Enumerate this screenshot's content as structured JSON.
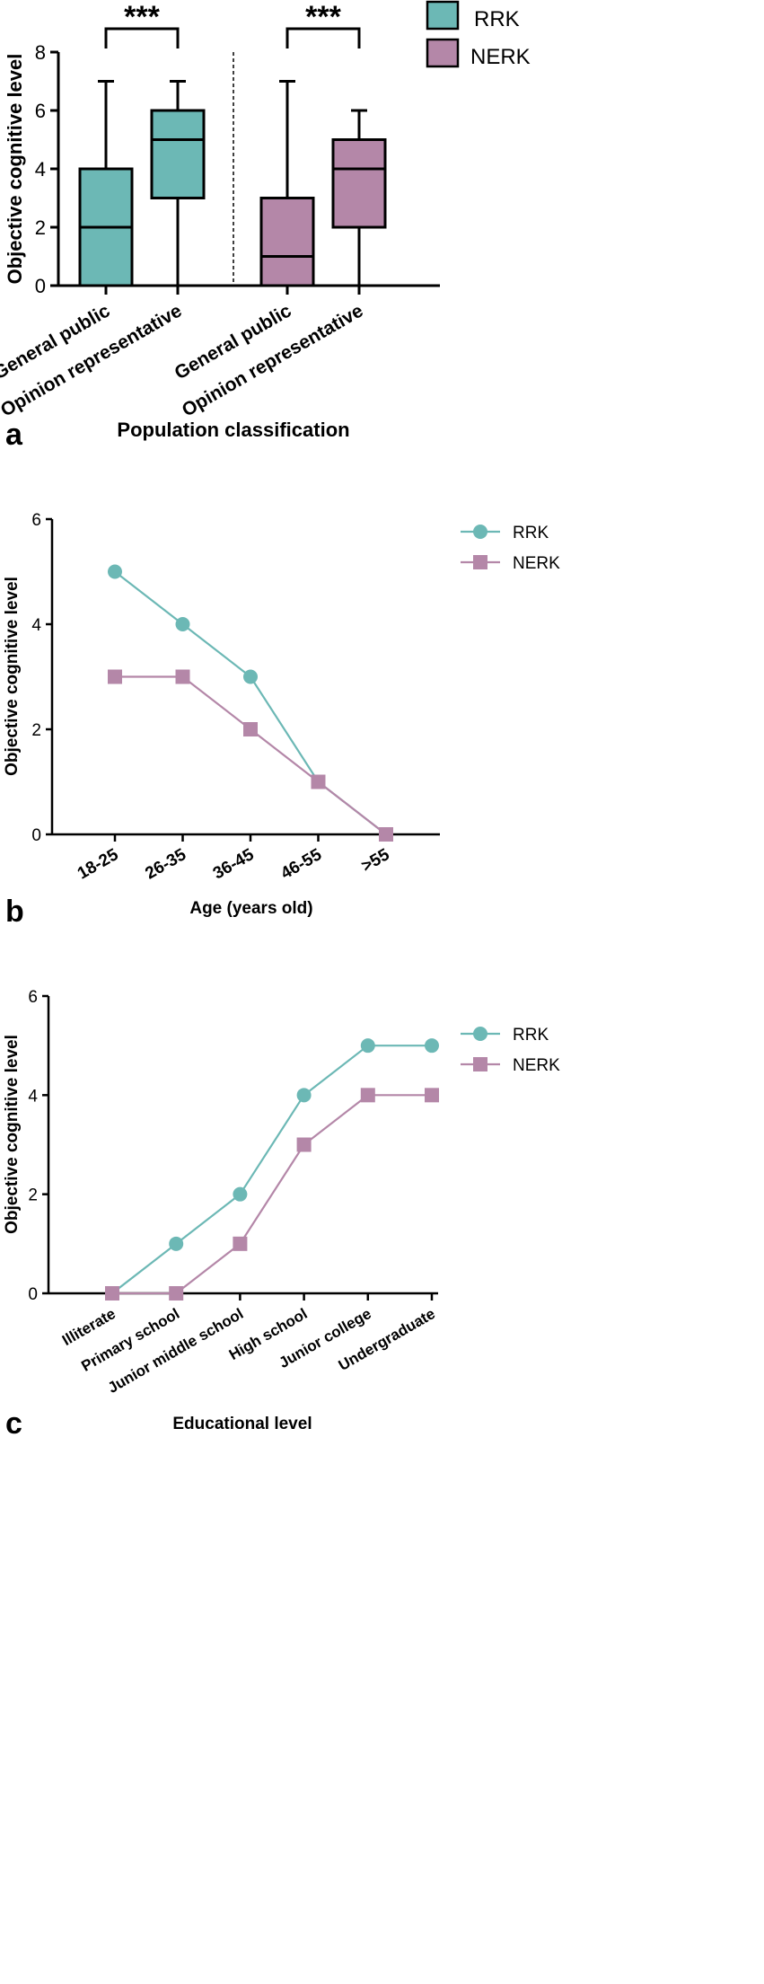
{
  "colors": {
    "rrk": "#6cb8b5",
    "nerk": "#b487a8",
    "axis": "#000000"
  },
  "chart_data": [
    {
      "type": "box",
      "panel_label": "a",
      "xlabel": "Population classification",
      "ylabel": "Objective cognitive level",
      "ylim": [
        0,
        8
      ],
      "yticks": [
        "0",
        "2",
        "4",
        "6",
        "8"
      ],
      "legend": [
        {
          "name": "RRK",
          "icon": "square-swatch"
        },
        {
          "name": "NERK",
          "icon": "square-swatch"
        }
      ],
      "significance": [
        "***",
        "***"
      ],
      "boxes": [
        {
          "group": "RRK",
          "category": "General public",
          "min": 0,
          "q1": 0,
          "median": 2,
          "q3": 4,
          "max": 7
        },
        {
          "group": "RRK",
          "category": "Opinion representative",
          "min": 0,
          "q1": 3,
          "median": 5,
          "q3": 6,
          "max": 7
        },
        {
          "group": "NERK",
          "category": "General public",
          "min": 0,
          "q1": 0,
          "median": 1,
          "q3": 3,
          "max": 7
        },
        {
          "group": "NERK",
          "category": "Opinion representative",
          "min": 0,
          "q1": 2,
          "median": 4,
          "q3": 5,
          "max": 6
        }
      ]
    },
    {
      "type": "line",
      "panel_label": "b",
      "xlabel": "Age (years old)",
      "ylabel": "Objective cognitive level",
      "ylim": [
        0,
        6
      ],
      "yticks": [
        "0",
        "2",
        "4",
        "6"
      ],
      "categories": [
        "18-25",
        "26-35",
        "36-45",
        "46-55",
        ">55"
      ],
      "series": [
        {
          "name": "RRK",
          "marker": "circle",
          "values": [
            5,
            4,
            3,
            1,
            0
          ]
        },
        {
          "name": "NERK",
          "marker": "square",
          "values": [
            3,
            3,
            2,
            1,
            0
          ]
        }
      ]
    },
    {
      "type": "line",
      "panel_label": "c",
      "xlabel": "Educational level",
      "ylabel": "Objective cognitive level",
      "ylim": [
        0,
        6
      ],
      "yticks": [
        "0",
        "2",
        "4",
        "6"
      ],
      "categories": [
        "Illiterate",
        "Primary school",
        "Junior middle school",
        "High school",
        "Junior college",
        "Undergraduate"
      ],
      "series": [
        {
          "name": "RRK",
          "marker": "circle",
          "values": [
            0,
            1,
            2,
            4,
            5,
            5
          ]
        },
        {
          "name": "NERK",
          "marker": "square",
          "values": [
            0,
            0,
            1,
            3,
            4,
            4
          ]
        }
      ]
    }
  ]
}
